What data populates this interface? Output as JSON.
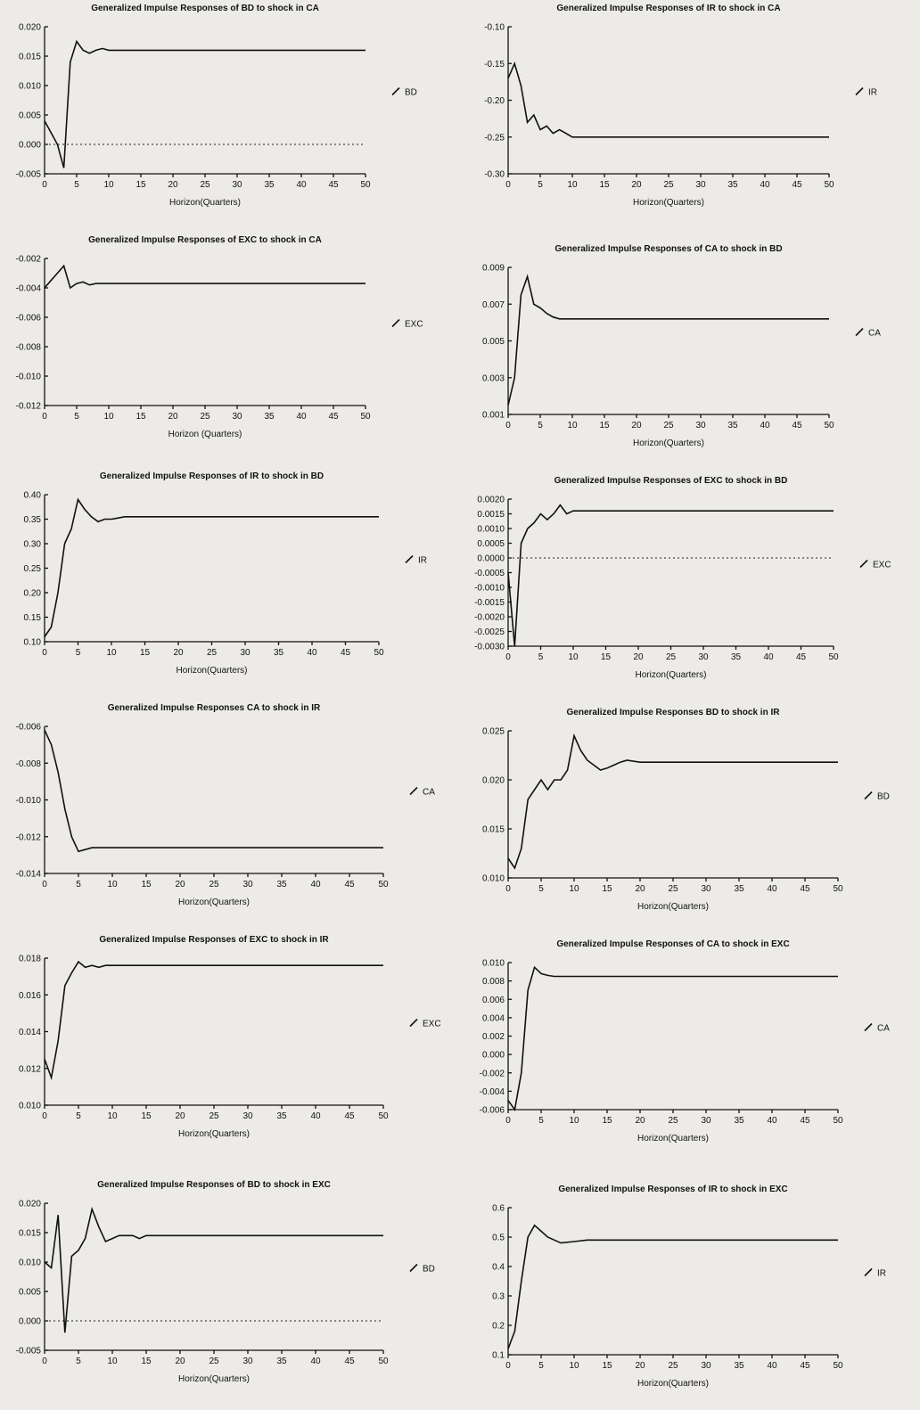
{
  "chart_data": [
    {
      "type": "line",
      "title": "Generalized Impulse Responses of BD to shock in CA",
      "xlabel": "Horizon(Quarters)",
      "ylabel": "",
      "xlim": [
        0,
        50
      ],
      "ylim": [
        -0.005,
        0.02
      ],
      "yticks": [
        "-0.005",
        "0.000",
        "0.005",
        "0.010",
        "0.015",
        "0.020"
      ],
      "xticks": [
        "0",
        "5",
        "10",
        "15",
        "20",
        "25",
        "30",
        "35",
        "40",
        "45",
        "50"
      ],
      "zero_line": true,
      "legend": "right",
      "series": [
        {
          "name": "BD",
          "x": [
            0,
            1,
            2,
            3,
            4,
            5,
            6,
            7,
            8,
            9,
            10,
            12,
            15,
            20,
            25,
            30,
            35,
            40,
            45,
            50
          ],
          "y": [
            0.004,
            0.002,
            0.0,
            -0.004,
            0.014,
            0.0175,
            0.016,
            0.0155,
            0.016,
            0.0163,
            0.016,
            0.016,
            0.016,
            0.016,
            0.016,
            0.016,
            0.016,
            0.016,
            0.016,
            0.016
          ]
        }
      ]
    },
    {
      "type": "line",
      "title": "Generalized Impulse Responses of IR to shock in CA",
      "xlabel": "Horizon(Quarters)",
      "ylabel": "",
      "xlim": [
        0,
        50
      ],
      "ylim": [
        -0.3,
        -0.1
      ],
      "yticks": [
        "-0.30",
        "-0.25",
        "-0.20",
        "-0.15",
        "-0.10"
      ],
      "xticks": [
        "0",
        "5",
        "10",
        "15",
        "20",
        "25",
        "30",
        "35",
        "40",
        "45",
        "50"
      ],
      "zero_line": false,
      "legend": "right",
      "series": [
        {
          "name": "IR",
          "x": [
            0,
            1,
            2,
            3,
            4,
            5,
            6,
            7,
            8,
            9,
            10,
            12,
            15,
            20,
            25,
            30,
            35,
            40,
            45,
            50
          ],
          "y": [
            -0.17,
            -0.15,
            -0.18,
            -0.23,
            -0.22,
            -0.24,
            -0.235,
            -0.245,
            -0.24,
            -0.245,
            -0.25,
            -0.25,
            -0.25,
            -0.25,
            -0.25,
            -0.25,
            -0.25,
            -0.25,
            -0.25,
            -0.25
          ]
        }
      ]
    },
    {
      "type": "line",
      "title": "Generalized Impulse Responses of EXC to shock in CA",
      "xlabel": "Horizon (Quarters)",
      "ylabel": "",
      "xlim": [
        0,
        50
      ],
      "ylim": [
        -0.012,
        -0.002
      ],
      "yticks": [
        "-0.012",
        "-0.010",
        "-0.008",
        "-0.006",
        "-0.004",
        "-0.002"
      ],
      "xticks": [
        "0",
        "5",
        "10",
        "15",
        "20",
        "25",
        "30",
        "35",
        "40",
        "45",
        "50"
      ],
      "zero_line": false,
      "legend": "right",
      "series": [
        {
          "name": "EXC",
          "x": [
            0,
            1,
            2,
            3,
            4,
            5,
            6,
            7,
            8,
            10,
            12,
            15,
            20,
            25,
            30,
            35,
            40,
            45,
            50
          ],
          "y": [
            -0.004,
            -0.0035,
            -0.003,
            -0.0025,
            -0.004,
            -0.0037,
            -0.0036,
            -0.0038,
            -0.0037,
            -0.0037,
            -0.0037,
            -0.0037,
            -0.0037,
            -0.0037,
            -0.0037,
            -0.0037,
            -0.0037,
            -0.0037,
            -0.0037
          ]
        }
      ]
    },
    {
      "type": "line",
      "title": "Generalized Impulse Responses of CA to shock in BD",
      "xlabel": "Horizon(Quarters)",
      "ylabel": "",
      "xlim": [
        0,
        50
      ],
      "ylim": [
        0.001,
        0.009
      ],
      "yticks": [
        "0.001",
        "0.003",
        "0.005",
        "0.007",
        "0.009"
      ],
      "xticks": [
        "0",
        "5",
        "10",
        "15",
        "20",
        "25",
        "30",
        "35",
        "40",
        "45",
        "50"
      ],
      "zero_line": false,
      "legend": "right",
      "series": [
        {
          "name": "CA",
          "x": [
            0,
            1,
            2,
            3,
            4,
            5,
            6,
            7,
            8,
            10,
            12,
            15,
            20,
            25,
            30,
            35,
            40,
            45,
            50
          ],
          "y": [
            0.0015,
            0.003,
            0.0075,
            0.0085,
            0.007,
            0.0068,
            0.0065,
            0.0063,
            0.0062,
            0.0062,
            0.0062,
            0.0062,
            0.0062,
            0.0062,
            0.0062,
            0.0062,
            0.0062,
            0.0062,
            0.0062
          ]
        }
      ]
    },
    {
      "type": "line",
      "title": "Generalized Impulse Responses of IR to shock in BD",
      "xlabel": "Horizon(Quarters)",
      "ylabel": "",
      "xlim": [
        0,
        50
      ],
      "ylim": [
        0.1,
        0.4
      ],
      "yticks": [
        "0.10",
        "0.15",
        "0.20",
        "0.25",
        "0.30",
        "0.35",
        "0.40"
      ],
      "xticks": [
        "0",
        "5",
        "10",
        "15",
        "20",
        "25",
        "30",
        "35",
        "40",
        "45",
        "50"
      ],
      "zero_line": false,
      "legend": "right",
      "series": [
        {
          "name": "IR",
          "x": [
            0,
            1,
            2,
            3,
            4,
            5,
            6,
            7,
            8,
            9,
            10,
            12,
            15,
            20,
            25,
            30,
            35,
            40,
            45,
            50
          ],
          "y": [
            0.11,
            0.13,
            0.2,
            0.3,
            0.33,
            0.39,
            0.37,
            0.355,
            0.345,
            0.35,
            0.35,
            0.355,
            0.355,
            0.355,
            0.355,
            0.355,
            0.355,
            0.355,
            0.355,
            0.355
          ]
        }
      ]
    },
    {
      "type": "line",
      "title": "Generalized Impulse Responses of EXC to shock in BD",
      "xlabel": "Horizon(Quarters)",
      "ylabel": "",
      "xlim": [
        0,
        50
      ],
      "ylim": [
        -0.003,
        0.002
      ],
      "yticks": [
        "-0.0030",
        "-0.0025",
        "-0.0020",
        "-0.0015",
        "-0.0010",
        "-0.0005",
        "0.0000",
        "0.0005",
        "0.0010",
        "0.0015",
        "0.0020"
      ],
      "xticks": [
        "0",
        "5",
        "10",
        "15",
        "20",
        "25",
        "30",
        "35",
        "40",
        "45",
        "50"
      ],
      "zero_line": true,
      "legend": "right",
      "series": [
        {
          "name": "EXC",
          "x": [
            0,
            1,
            2,
            3,
            4,
            5,
            6,
            7,
            8,
            9,
            10,
            12,
            15,
            20,
            25,
            30,
            35,
            40,
            45,
            50
          ],
          "y": [
            -0.0005,
            -0.003,
            0.0005,
            0.001,
            0.0012,
            0.0015,
            0.0013,
            0.0015,
            0.0018,
            0.0015,
            0.0016,
            0.0016,
            0.0016,
            0.0016,
            0.0016,
            0.0016,
            0.0016,
            0.0016,
            0.0016,
            0.0016
          ]
        }
      ]
    },
    {
      "type": "line",
      "title": "Generalized Impulse Responses CA to shock in IR",
      "xlabel": "Horizon(Quarters)",
      "ylabel": "",
      "xlim": [
        0,
        50
      ],
      "ylim": [
        -0.014,
        -0.006
      ],
      "yticks": [
        "-0.014",
        "-0.012",
        "-0.010",
        "-0.008",
        "-0.006"
      ],
      "xticks": [
        "0",
        "5",
        "10",
        "15",
        "20",
        "25",
        "30",
        "35",
        "40",
        "45",
        "50"
      ],
      "zero_line": false,
      "legend": "right",
      "series": [
        {
          "name": "CA",
          "x": [
            0,
            1,
            2,
            3,
            4,
            5,
            6,
            7,
            8,
            10,
            12,
            15,
            20,
            25,
            30,
            35,
            40,
            45,
            50
          ],
          "y": [
            -0.0062,
            -0.007,
            -0.0085,
            -0.0105,
            -0.012,
            -0.0128,
            -0.0127,
            -0.0126,
            -0.0126,
            -0.0126,
            -0.0126,
            -0.0126,
            -0.0126,
            -0.0126,
            -0.0126,
            -0.0126,
            -0.0126,
            -0.0126,
            -0.0126
          ]
        }
      ]
    },
    {
      "type": "line",
      "title": "Generalized Impulse Responses BD to shock in IR",
      "xlabel": "Horizon(Quarters)",
      "ylabel": "",
      "xlim": [
        0,
        50
      ],
      "ylim": [
        0.01,
        0.025
      ],
      "yticks": [
        "0.010",
        "0.015",
        "0.020",
        "0.025"
      ],
      "xticks": [
        "0",
        "5",
        "10",
        "15",
        "20",
        "25",
        "30",
        "35",
        "40",
        "45",
        "50"
      ],
      "zero_line": false,
      "legend": "right",
      "series": [
        {
          "name": "BD",
          "x": [
            0,
            1,
            2,
            3,
            4,
            5,
            6,
            7,
            8,
            9,
            10,
            11,
            12,
            13,
            14,
            15,
            16,
            17,
            18,
            20,
            25,
            30,
            35,
            40,
            45,
            50
          ],
          "y": [
            0.012,
            0.011,
            0.013,
            0.018,
            0.019,
            0.02,
            0.019,
            0.02,
            0.02,
            0.021,
            0.0245,
            0.023,
            0.022,
            0.0215,
            0.021,
            0.0212,
            0.0215,
            0.0218,
            0.022,
            0.0218,
            0.0218,
            0.0218,
            0.0218,
            0.0218,
            0.0218,
            0.0218
          ]
        }
      ]
    },
    {
      "type": "line",
      "title": "Generalized Impulse Responses of EXC to shock in IR",
      "xlabel": "Horizon(Quarters)",
      "ylabel": "",
      "xlim": [
        0,
        50
      ],
      "ylim": [
        0.01,
        0.018
      ],
      "yticks": [
        "0.010",
        "0.012",
        "0.014",
        "0.016",
        "0.018"
      ],
      "xticks": [
        "0",
        "5",
        "10",
        "15",
        "20",
        "25",
        "30",
        "35",
        "40",
        "45",
        "50"
      ],
      "zero_line": false,
      "legend": "right",
      "series": [
        {
          "name": "EXC",
          "x": [
            0,
            1,
            2,
            3,
            4,
            5,
            6,
            7,
            8,
            9,
            10,
            12,
            15,
            20,
            25,
            30,
            35,
            40,
            45,
            50
          ],
          "y": [
            0.0125,
            0.0115,
            0.0135,
            0.0165,
            0.0172,
            0.0178,
            0.0175,
            0.0176,
            0.0175,
            0.0176,
            0.0176,
            0.0176,
            0.0176,
            0.0176,
            0.0176,
            0.0176,
            0.0176,
            0.0176,
            0.0176,
            0.0176
          ]
        }
      ]
    },
    {
      "type": "line",
      "title": "Generalized Impulse Responses of CA to shock in EXC",
      "xlabel": "Horizon(Quarters)",
      "ylabel": "",
      "xlim": [
        0,
        50
      ],
      "ylim": [
        -0.006,
        0.01
      ],
      "yticks": [
        "-0.006",
        "-0.004",
        "-0.002",
        "0.000",
        "0.002",
        "0.004",
        "0.006",
        "0.008",
        "0.010"
      ],
      "xticks": [
        "0",
        "5",
        "10",
        "15",
        "20",
        "25",
        "30",
        "35",
        "40",
        "45",
        "50"
      ],
      "zero_line": false,
      "legend": "right",
      "series": [
        {
          "name": "CA",
          "x": [
            0,
            1,
            2,
            3,
            4,
            5,
            6,
            7,
            8,
            10,
            12,
            15,
            20,
            25,
            30,
            35,
            40,
            45,
            50
          ],
          "y": [
            -0.005,
            -0.006,
            -0.002,
            0.007,
            0.0095,
            0.0088,
            0.0086,
            0.0085,
            0.0085,
            0.0085,
            0.0085,
            0.0085,
            0.0085,
            0.0085,
            0.0085,
            0.0085,
            0.0085,
            0.0085,
            0.0085
          ]
        }
      ]
    },
    {
      "type": "line",
      "title": "Generalized Impulse Responses of BD to shock in EXC",
      "xlabel": "Horizon(Quarters)",
      "ylabel": "",
      "xlim": [
        0,
        50
      ],
      "ylim": [
        -0.005,
        0.02
      ],
      "yticks": [
        "-0.005",
        "0.000",
        "0.005",
        "0.010",
        "0.015",
        "0.020"
      ],
      "xticks": [
        "0",
        "5",
        "10",
        "15",
        "20",
        "25",
        "30",
        "35",
        "40",
        "45",
        "50"
      ],
      "zero_line": true,
      "legend": "right",
      "series": [
        {
          "name": "BD",
          "x": [
            0,
            1,
            2,
            3,
            4,
            5,
            6,
            7,
            8,
            9,
            10,
            11,
            12,
            13,
            14,
            15,
            17,
            20,
            25,
            30,
            35,
            40,
            45,
            50
          ],
          "y": [
            0.01,
            0.009,
            0.018,
            -0.002,
            0.011,
            0.012,
            0.014,
            0.019,
            0.016,
            0.0135,
            0.014,
            0.0145,
            0.0145,
            0.0145,
            0.014,
            0.0145,
            0.0145,
            0.0145,
            0.0145,
            0.0145,
            0.0145,
            0.0145,
            0.0145,
            0.0145
          ]
        }
      ]
    },
    {
      "type": "line",
      "title": "Generalized Impulse Responses of IR to shock in EXC",
      "xlabel": "Horizon(Quarters)",
      "ylabel": "",
      "xlim": [
        0,
        50
      ],
      "ylim": [
        0.1,
        0.6
      ],
      "yticks": [
        "0.1",
        "0.2",
        "0.3",
        "0.4",
        "0.5",
        "0.6"
      ],
      "xticks": [
        "0",
        "5",
        "10",
        "15",
        "20",
        "25",
        "30",
        "35",
        "40",
        "45",
        "50"
      ],
      "zero_line": false,
      "legend": "right",
      "series": [
        {
          "name": "IR",
          "x": [
            0,
            1,
            2,
            3,
            4,
            5,
            6,
            7,
            8,
            10,
            12,
            15,
            20,
            25,
            30,
            35,
            40,
            45,
            50
          ],
          "y": [
            0.12,
            0.18,
            0.35,
            0.5,
            0.54,
            0.52,
            0.5,
            0.49,
            0.48,
            0.485,
            0.49,
            0.49,
            0.49,
            0.49,
            0.49,
            0.49,
            0.49,
            0.49,
            0.49
          ]
        }
      ]
    }
  ]
}
